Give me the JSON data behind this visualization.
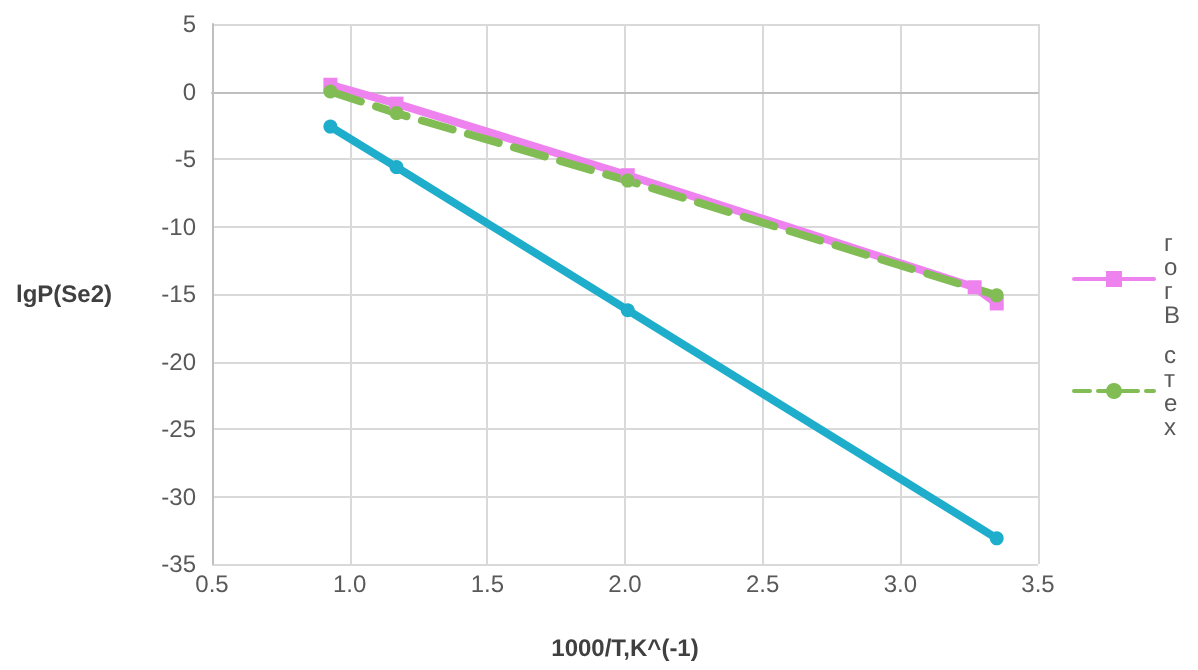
{
  "chart_data": {
    "type": "line",
    "xlabel": "1000/T,K^(-1)",
    "ylabel": "lgP(Se2)",
    "xlim": [
      0.5,
      3.5
    ],
    "xticks": [
      0.5,
      {
        "value": 1,
        "label": "1.0"
      },
      1.5,
      {
        "value": 2,
        "label": "2.0"
      },
      2.5,
      {
        "value": 3,
        "label": "3.0"
      },
      3.5
    ],
    "ylim": [
      -35,
      5
    ],
    "yticks": [
      -35,
      -30,
      -25,
      -20,
      -15,
      -10,
      -5,
      0,
      5
    ],
    "grid": true,
    "legend": "right",
    "series": [
      {
        "name": "гогВ",
        "color": "#ee82ee",
        "marker": "square",
        "line_style": "solid",
        "x": [
          0.93,
          1.17,
          2.01,
          3.27,
          3.35
        ],
        "values": [
          0.5,
          -0.9,
          -6.2,
          -14.5,
          -15.7
        ]
      },
      {
        "name": "стех",
        "color": "#82bc55",
        "marker": "circle",
        "line_style": "dashed",
        "x": [
          0.93,
          1.17,
          2.01,
          3.35
        ],
        "values": [
          0,
          -1.6,
          -6.6,
          -15.1
        ]
      },
      {
        "color": "#1eaecb",
        "marker": "circle",
        "line_style": "solid",
        "x": [
          0.93,
          1.17,
          2.01,
          3.35
        ],
        "values": [
          -2.6,
          -5.6,
          -16.2,
          -33.1
        ]
      }
    ]
  }
}
